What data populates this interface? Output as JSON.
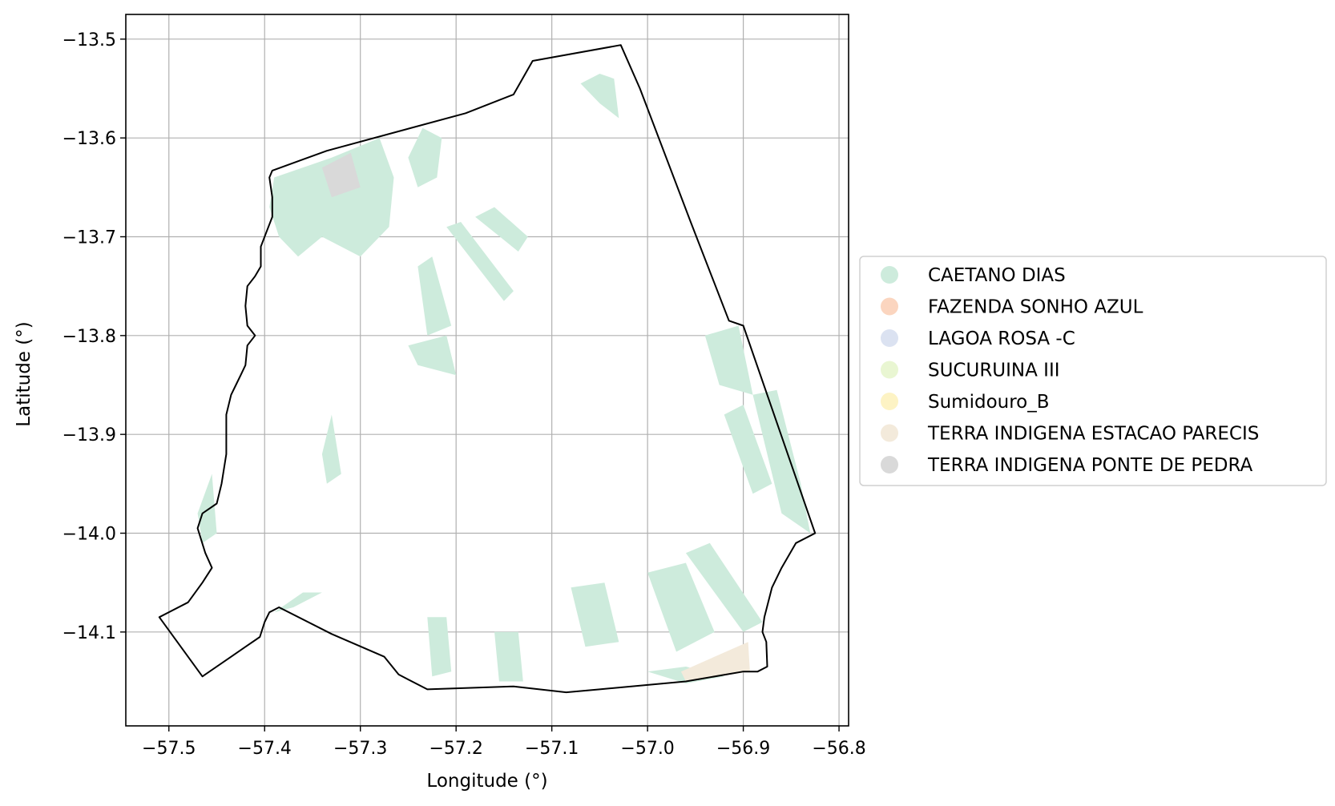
{
  "chart_data": {
    "type": "map",
    "title": "",
    "xlabel": "Longitude (°)",
    "ylabel": "Latitude (°)",
    "xlim": [
      -57.545,
      -56.79
    ],
    "ylim": [
      -14.195,
      -13.475
    ],
    "grid": true,
    "x_ticks": [
      {
        "value": -57.5,
        "label": "−57.5"
      },
      {
        "value": -57.4,
        "label": "−57.4"
      },
      {
        "value": -57.3,
        "label": "−57.3"
      },
      {
        "value": -57.2,
        "label": "−57.2"
      },
      {
        "value": -57.1,
        "label": "−57.1"
      },
      {
        "value": -57.0,
        "label": "−57.0"
      },
      {
        "value": -56.9,
        "label": "−56.9"
      },
      {
        "value": -56.8,
        "label": "−56.8"
      }
    ],
    "y_ticks": [
      {
        "value": -13.5,
        "label": "−13.5"
      },
      {
        "value": -13.6,
        "label": "−13.6"
      },
      {
        "value": -13.7,
        "label": "−13.7"
      },
      {
        "value": -13.8,
        "label": "−13.8"
      },
      {
        "value": -13.9,
        "label": "−13.9"
      },
      {
        "value": -14.0,
        "label": "−14.0"
      },
      {
        "value": -14.1,
        "label": "−14.1"
      }
    ],
    "legend_position": "center-right-outside",
    "legend": [
      {
        "label": "CAETANO DIAS",
        "color": "#cdebdc"
      },
      {
        "label": "FAZENDA SONHO AZUL",
        "color": "#fbd5bf"
      },
      {
        "label": "LAGOA ROSA -C",
        "color": "#dbe2f1"
      },
      {
        "label": "SUCURUINA III",
        "color": "#e9f6d2"
      },
      {
        "label": "Sumidouro_B",
        "color": "#fdf3c4"
      },
      {
        "label": "TERRA INDIGENA ESTACAO PARECIS",
        "color": "#f3eadb"
      },
      {
        "label": "TERRA INDIGENA PONTE DE PEDRA",
        "color": "#d9d9d9"
      }
    ],
    "boundary": [
      [
        -57.392,
        -13.633
      ],
      [
        -57.335,
        -13.613
      ],
      [
        -57.19,
        -13.575
      ],
      [
        -57.14,
        -13.556
      ],
      [
        -57.12,
        -13.522
      ],
      [
        -57.028,
        -13.506
      ],
      [
        -57.008,
        -13.55
      ],
      [
        -56.955,
        -13.685
      ],
      [
        -56.915,
        -13.785
      ],
      [
        -56.9,
        -13.79
      ],
      [
        -56.825,
        -14.0
      ],
      [
        -56.845,
        -14.01
      ],
      [
        -56.86,
        -14.035
      ],
      [
        -56.87,
        -14.055
      ],
      [
        -56.878,
        -14.085
      ],
      [
        -56.88,
        -14.1
      ],
      [
        -56.876,
        -14.11
      ],
      [
        -56.875,
        -14.135
      ],
      [
        -56.885,
        -14.14
      ],
      [
        -56.9,
        -14.14
      ],
      [
        -56.96,
        -14.15
      ],
      [
        -57.05,
        -14.158
      ],
      [
        -57.085,
        -14.161
      ],
      [
        -57.14,
        -14.155
      ],
      [
        -57.23,
        -14.158
      ],
      [
        -57.26,
        -14.143
      ],
      [
        -57.275,
        -14.125
      ],
      [
        -57.33,
        -14.102
      ],
      [
        -57.385,
        -14.075
      ],
      [
        -57.395,
        -14.08
      ],
      [
        -57.4,
        -14.09
      ],
      [
        -57.405,
        -14.105
      ],
      [
        -57.42,
        -14.115
      ],
      [
        -57.435,
        -14.125
      ],
      [
        -57.465,
        -14.145
      ],
      [
        -57.51,
        -14.085
      ],
      [
        -57.48,
        -14.07
      ],
      [
        -57.465,
        -14.05
      ],
      [
        -57.455,
        -14.035
      ],
      [
        -57.462,
        -14.02
      ],
      [
        -57.47,
        -13.995
      ],
      [
        -57.465,
        -13.98
      ],
      [
        -57.45,
        -13.97
      ],
      [
        -57.445,
        -13.95
      ],
      [
        -57.44,
        -13.92
      ],
      [
        -57.44,
        -13.88
      ],
      [
        -57.435,
        -13.86
      ],
      [
        -57.43,
        -13.85
      ],
      [
        -57.425,
        -13.84
      ],
      [
        -57.42,
        -13.83
      ],
      [
        -57.418,
        -13.81
      ],
      [
        -57.41,
        -13.8
      ],
      [
        -57.418,
        -13.79
      ],
      [
        -57.42,
        -13.77
      ],
      [
        -57.418,
        -13.75
      ],
      [
        -57.41,
        -13.74
      ],
      [
        -57.404,
        -13.73
      ],
      [
        -57.404,
        -13.71
      ],
      [
        -57.398,
        -13.695
      ],
      [
        -57.392,
        -13.68
      ],
      [
        -57.392,
        -13.66
      ],
      [
        -57.395,
        -13.64
      ]
    ],
    "features": [
      {
        "category": "CAETANO DIAS",
        "polygon": [
          [
            -57.39,
            -13.64
          ],
          [
            -57.33,
            -13.62
          ],
          [
            -57.28,
            -13.6
          ],
          [
            -57.265,
            -13.64
          ],
          [
            -57.27,
            -13.69
          ],
          [
            -57.3,
            -13.72
          ],
          [
            -57.34,
            -13.7
          ],
          [
            -57.365,
            -13.72
          ],
          [
            -57.385,
            -13.7
          ],
          [
            -57.395,
            -13.67
          ]
        ]
      },
      {
        "category": "CAETANO DIAS",
        "polygon": [
          [
            -57.235,
            -13.59
          ],
          [
            -57.215,
            -13.6
          ],
          [
            -57.22,
            -13.64
          ],
          [
            -57.24,
            -13.65
          ],
          [
            -57.25,
            -13.62
          ]
        ]
      },
      {
        "category": "TERRA INDIGENA PONTE DE PEDRA",
        "polygon": [
          [
            -57.34,
            -13.63
          ],
          [
            -57.31,
            -13.615
          ],
          [
            -57.3,
            -13.65
          ],
          [
            -57.33,
            -13.66
          ]
        ]
      },
      {
        "category": "CAETANO DIAS",
        "polygon": [
          [
            -57.05,
            -13.535
          ],
          [
            -57.035,
            -13.54
          ],
          [
            -57.03,
            -13.58
          ],
          [
            -57.05,
            -13.565
          ],
          [
            -57.07,
            -13.545
          ]
        ]
      },
      {
        "category": "CAETANO DIAS",
        "polygon": [
          [
            -57.21,
            -13.69
          ],
          [
            -57.195,
            -13.685
          ],
          [
            -57.14,
            -13.755
          ],
          [
            -57.15,
            -13.765
          ]
        ]
      },
      {
        "category": "CAETANO DIAS",
        "polygon": [
          [
            -57.18,
            -13.68
          ],
          [
            -57.16,
            -13.67
          ],
          [
            -57.125,
            -13.7
          ],
          [
            -57.135,
            -13.715
          ]
        ]
      },
      {
        "category": "CAETANO DIAS",
        "polygon": [
          [
            -57.24,
            -13.73
          ],
          [
            -57.225,
            -13.72
          ],
          [
            -57.205,
            -13.79
          ],
          [
            -57.23,
            -13.8
          ]
        ]
      },
      {
        "category": "CAETANO DIAS",
        "polygon": [
          [
            -57.25,
            -13.81
          ],
          [
            -57.21,
            -13.8
          ],
          [
            -57.2,
            -13.84
          ],
          [
            -57.24,
            -13.83
          ]
        ]
      },
      {
        "category": "CAETANO DIAS",
        "polygon": [
          [
            -57.34,
            -13.92
          ],
          [
            -57.33,
            -13.88
          ],
          [
            -57.32,
            -13.94
          ],
          [
            -57.335,
            -13.95
          ]
        ]
      },
      {
        "category": "CAETANO DIAS",
        "polygon": [
          [
            -56.94,
            -13.8
          ],
          [
            -56.905,
            -13.79
          ],
          [
            -56.89,
            -13.86
          ],
          [
            -56.925,
            -13.85
          ]
        ]
      },
      {
        "category": "CAETANO DIAS",
        "polygon": [
          [
            -56.89,
            -13.86
          ],
          [
            -56.865,
            -13.855
          ],
          [
            -56.84,
            -13.95
          ],
          [
            -56.83,
            -14.0
          ],
          [
            -56.86,
            -13.98
          ]
        ]
      },
      {
        "category": "CAETANO DIAS",
        "polygon": [
          [
            -56.92,
            -13.88
          ],
          [
            -56.9,
            -13.87
          ],
          [
            -56.87,
            -13.95
          ],
          [
            -56.89,
            -13.96
          ]
        ]
      },
      {
        "category": "CAETANO DIAS",
        "polygon": [
          [
            -56.96,
            -14.02
          ],
          [
            -56.935,
            -14.01
          ],
          [
            -56.88,
            -14.09
          ],
          [
            -56.9,
            -14.1
          ]
        ]
      },
      {
        "category": "CAETANO DIAS",
        "polygon": [
          [
            -57.0,
            -14.04
          ],
          [
            -56.96,
            -14.03
          ],
          [
            -56.93,
            -14.1
          ],
          [
            -56.97,
            -14.12
          ]
        ]
      },
      {
        "category": "CAETANO DIAS",
        "polygon": [
          [
            -57.08,
            -14.055
          ],
          [
            -57.045,
            -14.05
          ],
          [
            -57.03,
            -14.11
          ],
          [
            -57.065,
            -14.115
          ]
        ]
      },
      {
        "category": "CAETANO DIAS",
        "polygon": [
          [
            -57.23,
            -14.085
          ],
          [
            -57.21,
            -14.085
          ],
          [
            -57.205,
            -14.14
          ],
          [
            -57.225,
            -14.145
          ]
        ]
      },
      {
        "category": "CAETANO DIAS",
        "polygon": [
          [
            -57.16,
            -14.1
          ],
          [
            -57.135,
            -14.1
          ],
          [
            -57.13,
            -14.15
          ],
          [
            -57.155,
            -14.15
          ]
        ]
      },
      {
        "category": "CAETANO DIAS",
        "polygon": [
          [
            -57.39,
            -14.08
          ],
          [
            -57.36,
            -14.06
          ],
          [
            -57.34,
            -14.06
          ],
          [
            -57.37,
            -14.075
          ]
        ]
      },
      {
        "category": "CAETANO DIAS",
        "polygon": [
          [
            -57.47,
            -13.98
          ],
          [
            -57.455,
            -13.94
          ],
          [
            -57.45,
            -14.0
          ],
          [
            -57.465,
            -14.01
          ]
        ]
      },
      {
        "category": "CAETANO DIAS",
        "polygon": [
          [
            -57.0,
            -14.14
          ],
          [
            -56.96,
            -14.135
          ],
          [
            -56.92,
            -14.145
          ],
          [
            -56.96,
            -14.152
          ]
        ]
      },
      {
        "category": "TERRA INDIGENA ESTACAO PARECIS",
        "polygon": [
          [
            -56.965,
            -14.14
          ],
          [
            -56.895,
            -14.11
          ],
          [
            -56.893,
            -14.14
          ],
          [
            -56.96,
            -14.15
          ]
        ]
      }
    ]
  }
}
